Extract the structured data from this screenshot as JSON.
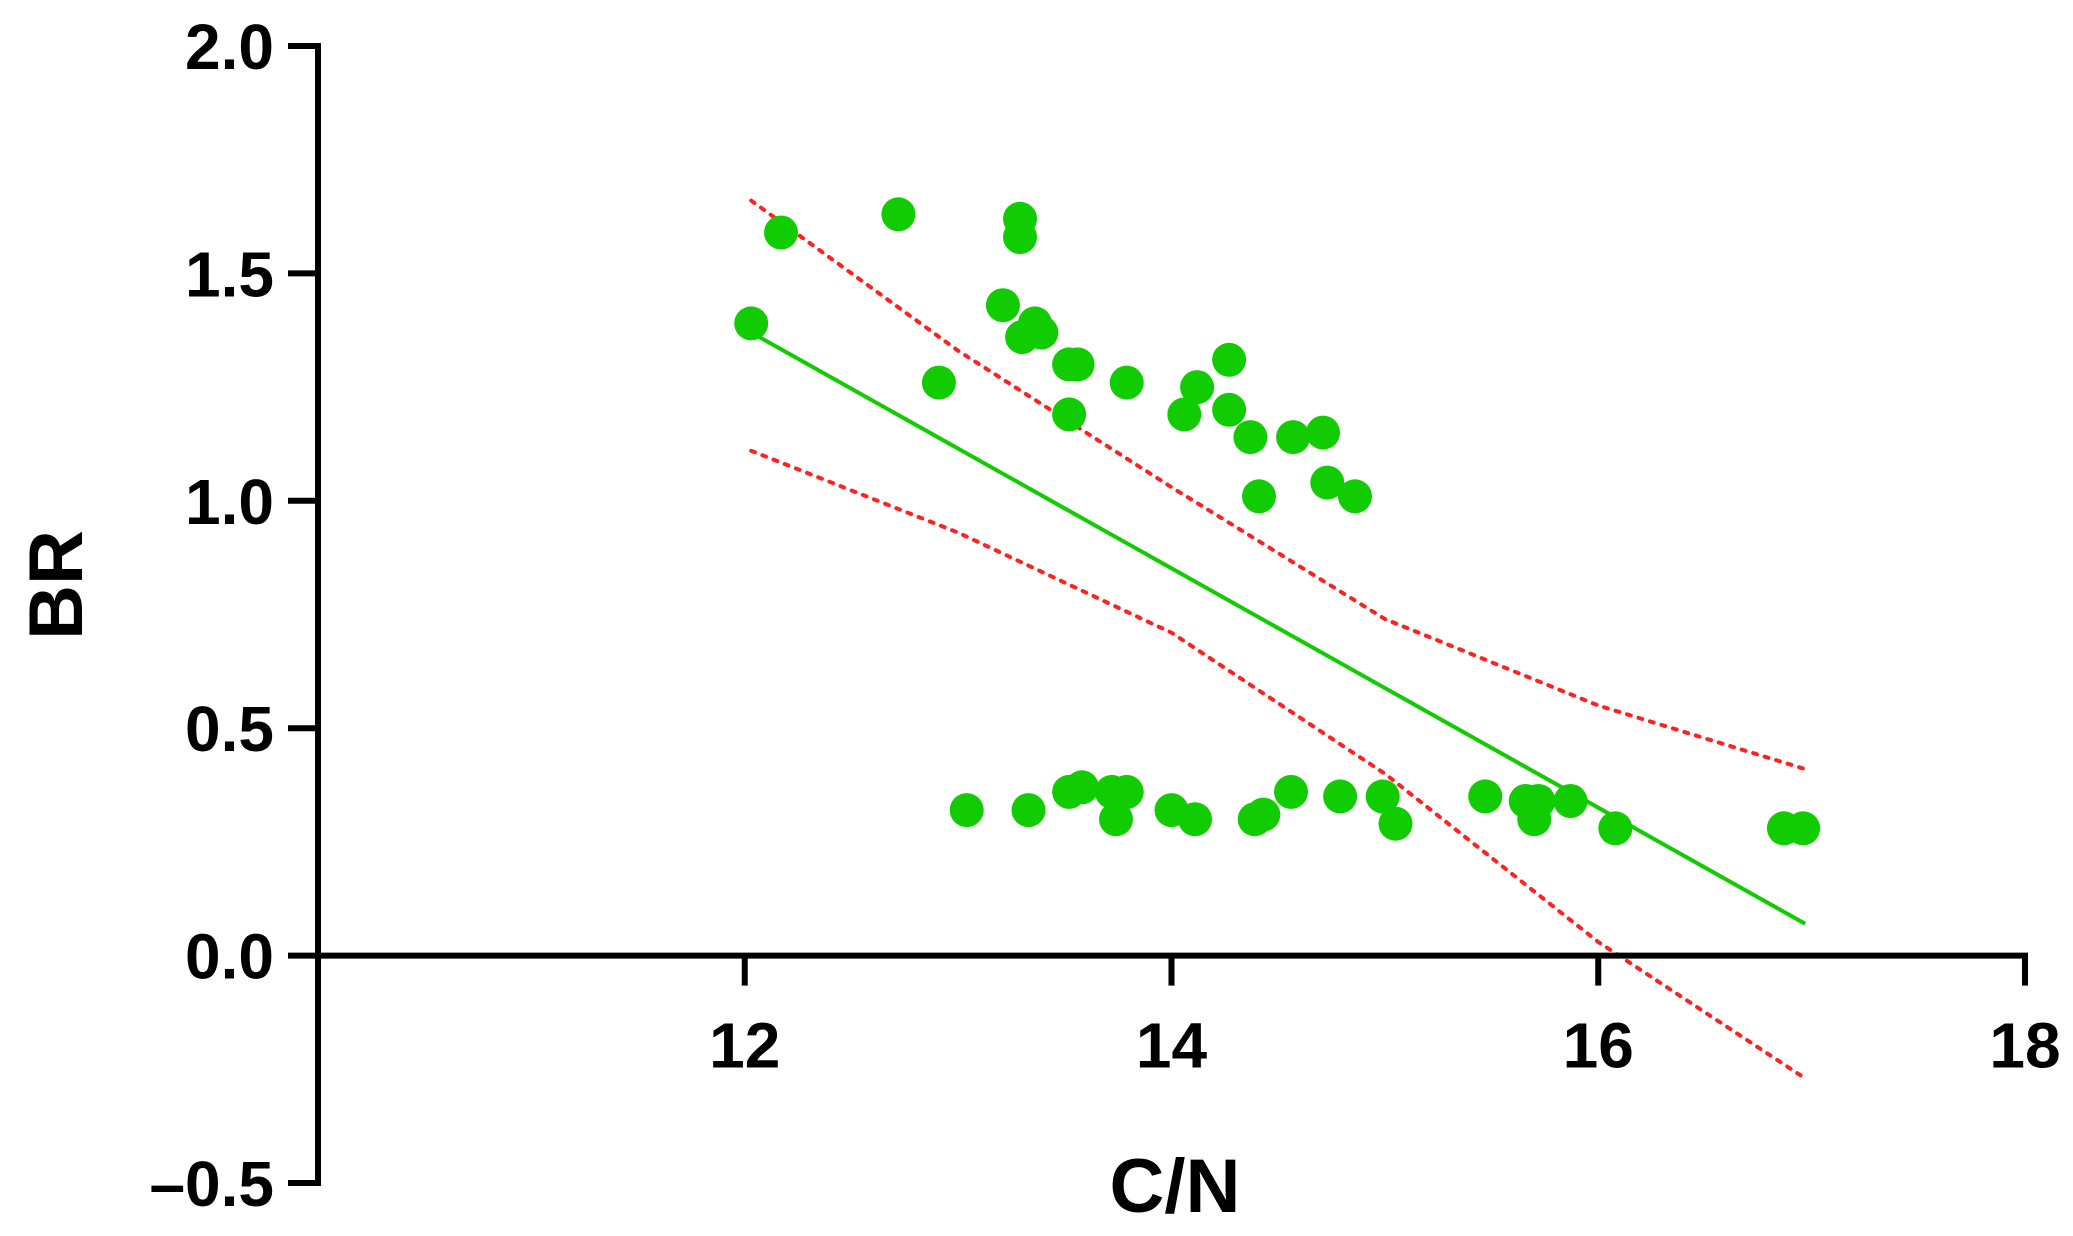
{
  "chart_data": {
    "type": "scatter",
    "xlabel": "C/N",
    "ylabel": "BR",
    "xlim": [
      10,
      18
    ],
    "ylim": [
      -0.5,
      2.0
    ],
    "x_ticks": [
      12,
      14,
      16,
      18
    ],
    "y_ticks": [
      -0.5,
      0.0,
      0.5,
      1.0,
      1.5,
      2.0
    ],
    "x_tick_labels": [
      "12",
      "14",
      "16",
      "18"
    ],
    "y_tick_labels": [
      "–0.5",
      "0.0",
      "0.5",
      "1.0",
      "1.5",
      "2.0"
    ],
    "grid": false,
    "legend": "none",
    "colors": {
      "points": "#11cc00",
      "fit": "#11cc00",
      "ci": "#ff2020",
      "axis": "#000000"
    },
    "points": [
      {
        "x": 12.03,
        "y": 1.39
      },
      {
        "x": 12.17,
        "y": 1.59
      },
      {
        "x": 12.72,
        "y": 1.63
      },
      {
        "x": 12.91,
        "y": 1.26
      },
      {
        "x": 13.29,
        "y": 1.62
      },
      {
        "x": 13.29,
        "y": 1.58
      },
      {
        "x": 13.21,
        "y": 1.43
      },
      {
        "x": 13.36,
        "y": 1.39
      },
      {
        "x": 13.39,
        "y": 1.37
      },
      {
        "x": 13.3,
        "y": 1.36
      },
      {
        "x": 13.52,
        "y": 1.3
      },
      {
        "x": 13.56,
        "y": 1.3
      },
      {
        "x": 13.52,
        "y": 1.19
      },
      {
        "x": 13.79,
        "y": 1.26
      },
      {
        "x": 14.12,
        "y": 1.25
      },
      {
        "x": 14.27,
        "y": 1.31
      },
      {
        "x": 14.06,
        "y": 1.19
      },
      {
        "x": 14.27,
        "y": 1.2
      },
      {
        "x": 14.37,
        "y": 1.14
      },
      {
        "x": 14.57,
        "y": 1.14
      },
      {
        "x": 14.71,
        "y": 1.15
      },
      {
        "x": 14.41,
        "y": 1.01
      },
      {
        "x": 14.73,
        "y": 1.04
      },
      {
        "x": 14.86,
        "y": 1.01
      },
      {
        "x": 13.04,
        "y": 0.32
      },
      {
        "x": 13.33,
        "y": 0.32
      },
      {
        "x": 13.52,
        "y": 0.36
      },
      {
        "x": 13.58,
        "y": 0.37
      },
      {
        "x": 13.72,
        "y": 0.36
      },
      {
        "x": 13.79,
        "y": 0.36
      },
      {
        "x": 13.74,
        "y": 0.3
      },
      {
        "x": 14.0,
        "y": 0.32
      },
      {
        "x": 14.11,
        "y": 0.3
      },
      {
        "x": 14.39,
        "y": 0.3
      },
      {
        "x": 14.43,
        "y": 0.31
      },
      {
        "x": 14.56,
        "y": 0.36
      },
      {
        "x": 14.79,
        "y": 0.35
      },
      {
        "x": 14.99,
        "y": 0.35
      },
      {
        "x": 15.05,
        "y": 0.29
      },
      {
        "x": 15.47,
        "y": 0.35
      },
      {
        "x": 15.66,
        "y": 0.34
      },
      {
        "x": 15.72,
        "y": 0.34
      },
      {
        "x": 15.7,
        "y": 0.3
      },
      {
        "x": 15.87,
        "y": 0.34
      },
      {
        "x": 16.08,
        "y": 0.28
      },
      {
        "x": 16.87,
        "y": 0.28
      },
      {
        "x": 16.96,
        "y": 0.28
      }
    ],
    "fit_line": [
      {
        "x": 12.03,
        "y": 1.37
      },
      {
        "x": 16.97,
        "y": 0.07
      }
    ],
    "ci_upper": [
      {
        "x": 12.03,
        "y": 1.66
      },
      {
        "x": 13.0,
        "y": 1.33
      },
      {
        "x": 14.0,
        "y": 1.03
      },
      {
        "x": 15.0,
        "y": 0.74
      },
      {
        "x": 16.0,
        "y": 0.55
      },
      {
        "x": 16.97,
        "y": 0.41
      }
    ],
    "ci_lower": [
      {
        "x": 12.03,
        "y": 1.11
      },
      {
        "x": 13.0,
        "y": 0.93
      },
      {
        "x": 14.0,
        "y": 0.71
      },
      {
        "x": 15.0,
        "y": 0.4
      },
      {
        "x": 16.0,
        "y": 0.03
      },
      {
        "x": 16.97,
        "y": -0.27
      }
    ]
  }
}
